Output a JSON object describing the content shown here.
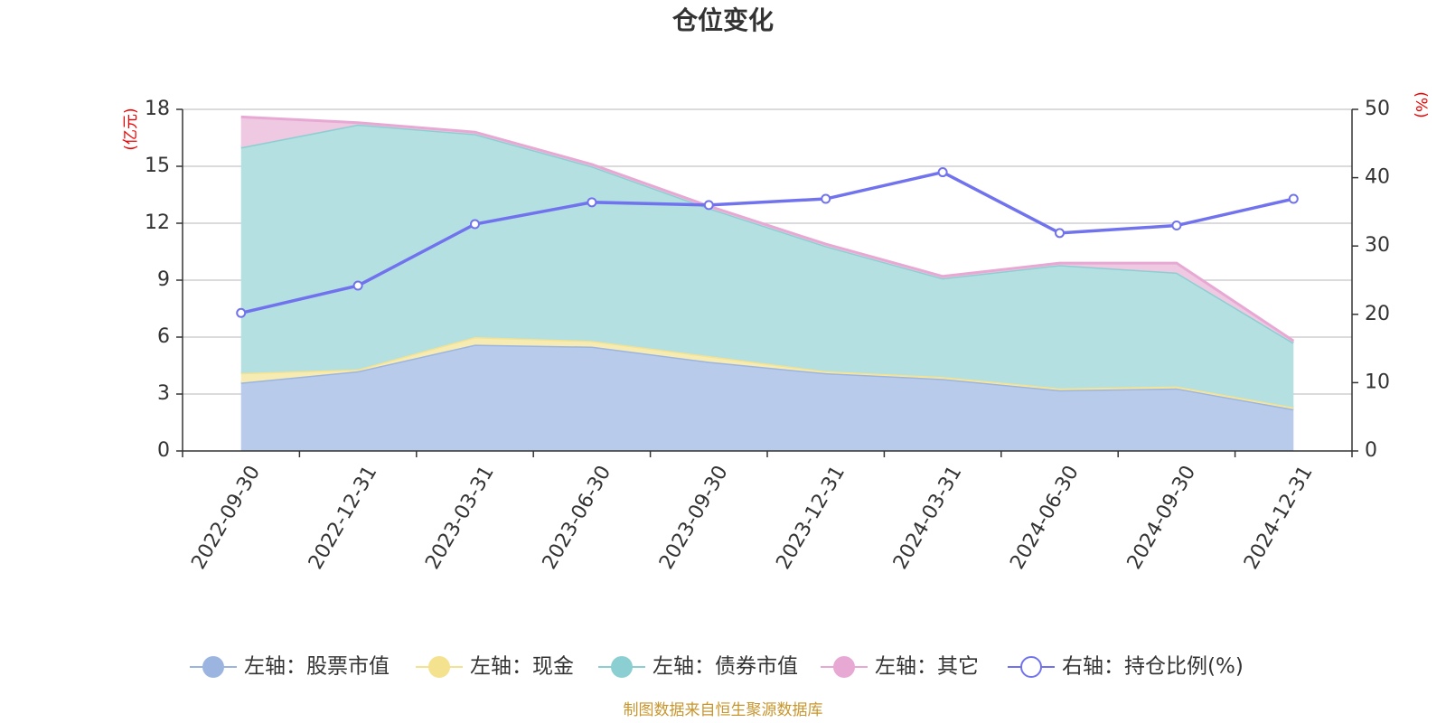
{
  "chart_data": {
    "type": "area",
    "title": "仓位变化",
    "categories": [
      "2022-09-30",
      "2022-12-31",
      "2023-03-31",
      "2023-06-30",
      "2023-09-30",
      "2023-12-31",
      "2024-03-31",
      "2024-06-30",
      "2024-09-30",
      "2024-12-31"
    ],
    "left_axis": {
      "unit": "(亿元)",
      "ylim": [
        0,
        18
      ],
      "ticks": [
        0,
        3,
        6,
        9,
        12,
        15,
        18
      ]
    },
    "right_axis": {
      "unit": "(%)",
      "ylim": [
        0,
        50
      ],
      "ticks": [
        0,
        10,
        20,
        30,
        40,
        50
      ]
    },
    "stacked_series": [
      {
        "name": "左轴：股票市值",
        "color": "#9bb5e0",
        "fill": "#b8cbeb",
        "values": [
          3.6,
          4.2,
          5.6,
          5.5,
          4.7,
          4.1,
          3.8,
          3.2,
          3.3,
          2.2
        ]
      },
      {
        "name": "左轴：现金",
        "color": "#f5e28f",
        "fill": "#f7ebb4",
        "values": [
          0.5,
          0.1,
          0.4,
          0.3,
          0.3,
          0.1,
          0.1,
          0.1,
          0.1,
          0.1
        ]
      },
      {
        "name": "左轴：债券市值",
        "color": "#8ccfd2",
        "fill": "#b5e0e1",
        "values": [
          11.9,
          12.9,
          10.7,
          9.2,
          7.8,
          6.6,
          5.2,
          6.5,
          6.0,
          3.4
        ]
      },
      {
        "name": "左轴：其它",
        "color": "#e7a9d4",
        "fill": "#efc8e2",
        "values": [
          1.6,
          0.1,
          0.1,
          0.1,
          0.1,
          0.1,
          0.1,
          0.1,
          0.5,
          0.1
        ]
      }
    ],
    "line_series": {
      "name": "右轴：持仓比例(%)",
      "color": "#7173ee",
      "values": [
        20.2,
        24.2,
        33.2,
        36.4,
        36.0,
        36.9,
        40.8,
        31.9,
        33.0,
        36.9
      ]
    },
    "source": "制图数据来自恒生聚源数据库"
  }
}
